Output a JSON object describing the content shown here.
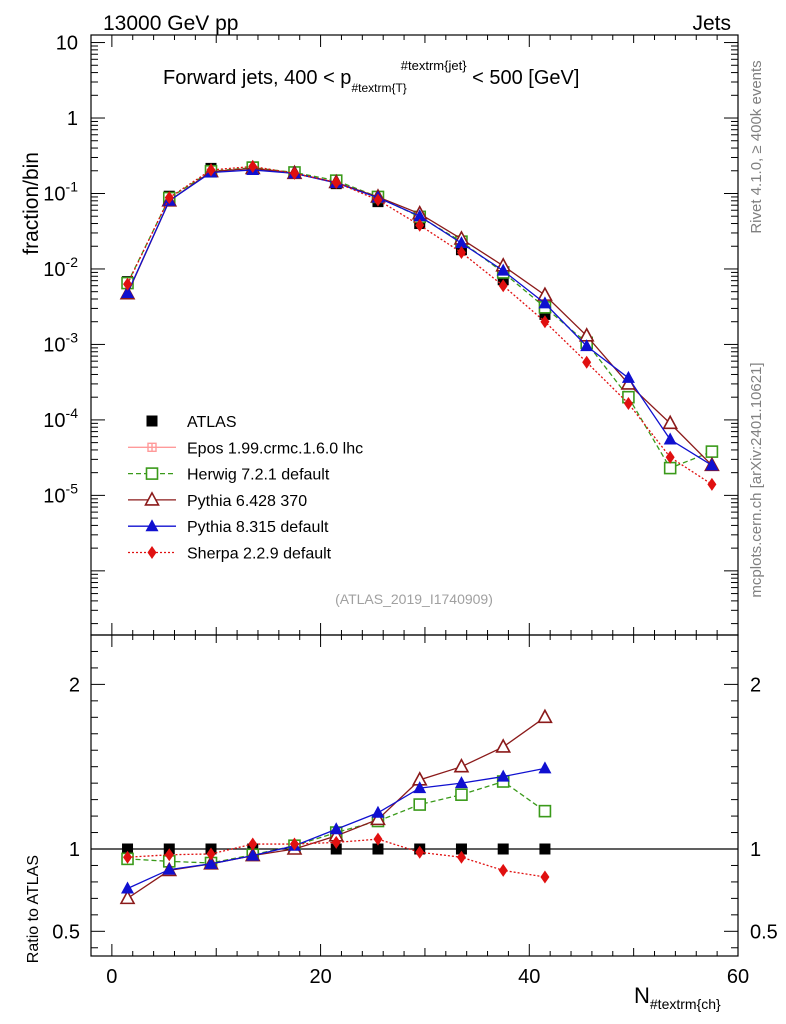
{
  "header": {
    "left": "13000 GeV pp",
    "right": "Jets"
  },
  "side_labels": {
    "top": "Rivet 4.1.0, ≥ 400k events",
    "bottom": "mcplots.cern.ch [arXiv:2401.10621]"
  },
  "chart_data": {
    "type": "scatter",
    "title": "Forward jets, 400 < p_{#textrm{T}}^{#textrm{jet}} < 500 [GeV]",
    "title_parts": {
      "pre": "Forward jets, 400 < p",
      "sub": "#textrm{T}",
      "sup": "#textrm{jet}",
      "post": " < 500 [GeV]"
    },
    "analysis_tag": "(ATLAS_2019_I1740909)",
    "xlabel": "N",
    "xlabel_sub": "#textrm{ch}",
    "ylabel_top": "fraction/bin",
    "ylabel_bottom": "Ratio to ATLAS",
    "xlim": [
      -2,
      60
    ],
    "ylim_top_log10": [
      -6.85,
      1.1
    ],
    "ylim_ratio": [
      0.35,
      2.3
    ],
    "x_ticks": [
      "0",
      "20",
      "40",
      "60"
    ],
    "y_ticks_top": [
      {
        "base": "10",
        "exp": "-5",
        "log": -5
      },
      {
        "base": "10",
        "exp": "-4",
        "log": -4
      },
      {
        "base": "10",
        "exp": "-3",
        "log": -3
      },
      {
        "base": "10",
        "exp": "-2",
        "log": -2
      },
      {
        "base": "10",
        "exp": "-1",
        "log": -1
      },
      {
        "base": "1",
        "exp": "",
        "log": 0
      },
      {
        "base": "10",
        "exp": "",
        "log": 1
      }
    ],
    "y_ticks_ratio": [
      "0.5",
      "1",
      "2"
    ],
    "x": [
      1.5,
      5.5,
      9.5,
      13.5,
      17.5,
      21.5,
      25.5,
      29.5,
      33.5,
      37.5,
      41.5,
      45.5,
      49.5,
      53.5,
      57.5
    ],
    "series": [
      {
        "name": "ATLAS",
        "color": "#000000",
        "marker": "square",
        "dash": "",
        "values": [
          0.0068,
          0.092,
          0.215,
          0.225,
          0.185,
          0.135,
          0.078,
          0.04,
          0.018,
          0.0072,
          0.0025,
          null,
          null,
          null,
          null
        ],
        "ratio": [
          1,
          1,
          1,
          1,
          1,
          1,
          1,
          1,
          1,
          1,
          1,
          null,
          null,
          null,
          null
        ]
      },
      {
        "name": "Epos 1.99.crmc.1.6.0 lhc",
        "color": "#ff9a9a",
        "marker": "cross",
        "dash": "",
        "values": [],
        "ratio": []
      },
      {
        "name": "Herwig 7.2.1 default",
        "color": "#3a9a1a",
        "marker": "open-square",
        "dash": "5,3",
        "values": [
          0.0065,
          0.087,
          0.197,
          0.22,
          0.19,
          0.148,
          0.09,
          0.049,
          0.023,
          0.009,
          0.0031,
          0.00105,
          0.0002,
          2.3e-05,
          3.8e-05
        ],
        "ratio": [
          0.94,
          0.925,
          0.915,
          0.965,
          1.02,
          1.1,
          1.17,
          1.27,
          1.33,
          1.41,
          1.23,
          null,
          null,
          null,
          null
        ]
      },
      {
        "name": "Pythia 6.428 370",
        "color": "#8b1a1a",
        "marker": "open-triangle",
        "dash": "",
        "values": [
          0.0047,
          0.08,
          0.195,
          0.215,
          0.185,
          0.14,
          0.09,
          0.054,
          0.025,
          0.011,
          0.0045,
          0.0013,
          0.0003,
          9e-05,
          2.5e-05
        ],
        "ratio": [
          0.7,
          0.87,
          0.91,
          0.96,
          1.0,
          1.08,
          1.18,
          1.42,
          1.5,
          1.62,
          1.8,
          null,
          null,
          null,
          null
        ]
      },
      {
        "name": "Pythia 8.315 default",
        "color": "#1010d0",
        "marker": "triangle",
        "dash": "",
        "values": [
          0.0048,
          0.08,
          0.19,
          0.205,
          0.185,
          0.138,
          0.088,
          0.05,
          0.022,
          0.0095,
          0.0035,
          0.00095,
          0.00036,
          5.5e-05,
          2.5e-05
        ],
        "ratio": [
          0.76,
          0.875,
          0.91,
          0.96,
          1.02,
          1.12,
          1.22,
          1.37,
          1.4,
          1.44,
          1.49,
          null,
          null,
          null,
          null
        ]
      },
      {
        "name": "Sherpa 2.2.9 default",
        "color": "#e01010",
        "marker": "diamond",
        "dash": "2,2",
        "values": [
          0.0063,
          0.088,
          0.205,
          0.228,
          0.185,
          0.14,
          0.082,
          0.038,
          0.0165,
          0.006,
          0.002,
          0.00058,
          0.000165,
          3.2e-05,
          1.4e-05
        ],
        "ratio": [
          0.95,
          0.965,
          0.97,
          1.03,
          1.03,
          1.04,
          1.06,
          0.98,
          0.95,
          0.87,
          0.83,
          null,
          null,
          null,
          null
        ]
      }
    ]
  }
}
